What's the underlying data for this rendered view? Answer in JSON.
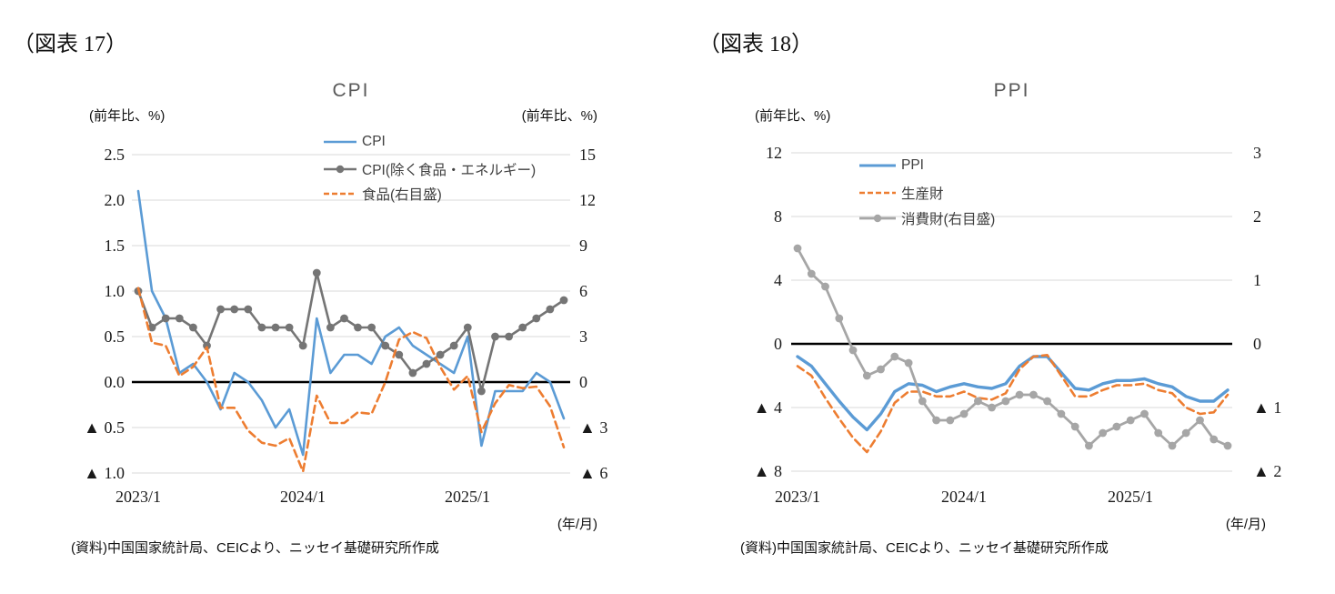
{
  "chart_data": [
    {
      "type": "line",
      "fig_label": "（図表 17）",
      "title": "CPI",
      "left_axis_title": "(前年比、%)",
      "right_axis_title": "(前年比、%)",
      "x_axis_title": "(年/月)",
      "source": "(資料)中国国家統計局、CEICより、ニッセイ基礎研究所作成",
      "months": [
        "2023/1",
        "2023/2",
        "2023/3",
        "2023/4",
        "2023/5",
        "2023/6",
        "2023/7",
        "2023/8",
        "2023/9",
        "2023/10",
        "2023/11",
        "2023/12",
        "2024/1",
        "2024/2",
        "2024/3",
        "2024/4",
        "2024/5",
        "2024/6",
        "2024/7",
        "2024/8",
        "2024/9",
        "2024/10",
        "2024/11",
        "2024/12",
        "2025/1",
        "2025/2",
        "2025/3",
        "2025/4",
        "2025/5",
        "2025/6",
        "2025/7",
        "2025/8"
      ],
      "x_tick_labels": [
        {
          "label": "2023/1",
          "index": 0
        },
        {
          "label": "2024/1",
          "index": 12
        },
        {
          "label": "2025/1",
          "index": 24
        }
      ],
      "left_axis": {
        "min": -1.0,
        "max": 2.5,
        "ticks": [
          2.5,
          2.0,
          1.5,
          1.0,
          0.5,
          0.0,
          -0.5,
          -1.0
        ],
        "tick_labels": [
          "2.5",
          "2.0",
          "1.5",
          "1.0",
          "0.5",
          "0.0",
          "▲ 0.5",
          "▲ 1.0"
        ]
      },
      "right_axis": {
        "min": -6,
        "max": 15,
        "ticks": [
          15,
          12,
          9,
          6,
          3,
          0,
          -3,
          -6
        ],
        "tick_labels": [
          "15",
          "12",
          "9",
          "6",
          "3",
          "0",
          "▲ 3",
          "▲ 6"
        ]
      },
      "grid_color": "#D9D9D9",
      "zero_line_color": "#000000",
      "series": [
        {
          "name": "CPI",
          "axis": "left",
          "color": "#5B9BD5",
          "style": "solid",
          "marker": false,
          "width": 2.6,
          "values": [
            2.1,
            1.0,
            0.7,
            0.1,
            0.2,
            0.0,
            -0.3,
            0.1,
            0.0,
            -0.2,
            -0.5,
            -0.3,
            -0.8,
            0.7,
            0.1,
            0.3,
            0.3,
            0.2,
            0.5,
            0.6,
            0.4,
            0.3,
            0.2,
            0.1,
            0.5,
            -0.7,
            -0.1,
            -0.1,
            -0.1,
            0.1,
            0.0,
            -0.4
          ]
        },
        {
          "name": "CPI(除く食品・エネルギー)",
          "axis": "left",
          "color": "#757575",
          "style": "solid",
          "marker": true,
          "width": 2.6,
          "values": [
            1.0,
            0.6,
            0.7,
            0.7,
            0.6,
            0.4,
            0.8,
            0.8,
            0.8,
            0.6,
            0.6,
            0.6,
            0.4,
            1.2,
            0.6,
            0.7,
            0.6,
            0.6,
            0.4,
            0.3,
            0.1,
            0.2,
            0.3,
            0.4,
            0.6,
            -0.1,
            0.5,
            0.5,
            0.6,
            0.7,
            0.8,
            0.9
          ]
        },
        {
          "name": "食品(右目盛)",
          "axis": "right",
          "color": "#ED7D31",
          "style": "dashed",
          "marker": false,
          "width": 2.6,
          "values": [
            6.2,
            2.6,
            2.4,
            0.4,
            1.0,
            2.3,
            -1.7,
            -1.7,
            -3.2,
            -4.0,
            -4.2,
            -3.7,
            -5.9,
            -0.9,
            -2.7,
            -2.7,
            -2.0,
            -2.1,
            0.0,
            2.8,
            3.3,
            2.9,
            1.0,
            -0.5,
            0.4,
            -3.3,
            -1.4,
            -0.2,
            -0.4,
            -0.3,
            -1.6,
            -4.3
          ]
        }
      ]
    },
    {
      "type": "line",
      "fig_label": "（図表 18）",
      "title": "PPI",
      "left_axis_title": "(前年比、%)",
      "right_axis_title": "",
      "x_axis_title": "(年/月)",
      "source": "(資料)中国国家統計局、CEICより、ニッセイ基礎研究所作成",
      "months": [
        "2023/1",
        "2023/2",
        "2023/3",
        "2023/4",
        "2023/5",
        "2023/6",
        "2023/7",
        "2023/8",
        "2023/9",
        "2023/10",
        "2023/11",
        "2023/12",
        "2024/1",
        "2024/2",
        "2024/3",
        "2024/4",
        "2024/5",
        "2024/6",
        "2024/7",
        "2024/8",
        "2024/9",
        "2024/10",
        "2024/11",
        "2024/12",
        "2025/1",
        "2025/2",
        "2025/3",
        "2025/4",
        "2025/5",
        "2025/6",
        "2025/7",
        "2025/8"
      ],
      "x_tick_labels": [
        {
          "label": "2023/1",
          "index": 0
        },
        {
          "label": "2024/1",
          "index": 12
        },
        {
          "label": "2025/1",
          "index": 24
        }
      ],
      "left_axis": {
        "min": -8,
        "max": 12,
        "ticks": [
          12,
          8,
          4,
          0,
          -4,
          -8
        ],
        "tick_labels": [
          "12",
          "8",
          "4",
          "0",
          "▲ 4",
          "▲ 8"
        ]
      },
      "right_axis": {
        "min": -2,
        "max": 3,
        "ticks": [
          3,
          2,
          1,
          0,
          -1,
          -2
        ],
        "tick_labels": [
          "3",
          "2",
          "1",
          "0",
          "▲ 1",
          "▲ 2"
        ]
      },
      "grid_color": "#D9D9D9",
      "zero_line_color": "#000000",
      "series": [
        {
          "name": "PPI",
          "axis": "left",
          "color": "#5B9BD5",
          "style": "solid",
          "marker": false,
          "width": 3.4,
          "values": [
            -0.8,
            -1.4,
            -2.5,
            -3.6,
            -4.6,
            -5.4,
            -4.4,
            -3.0,
            -2.5,
            -2.6,
            -3.0,
            -2.7,
            -2.5,
            -2.7,
            -2.8,
            -2.5,
            -1.4,
            -0.8,
            -0.8,
            -1.8,
            -2.8,
            -2.9,
            -2.5,
            -2.3,
            -2.3,
            -2.2,
            -2.5,
            -2.7,
            -3.3,
            -3.6,
            -3.6,
            -2.9
          ]
        },
        {
          "name": "生産財",
          "axis": "left",
          "color": "#ED7D31",
          "style": "dashed",
          "marker": false,
          "width": 2.6,
          "values": [
            -1.4,
            -2.0,
            -3.4,
            -4.7,
            -5.9,
            -6.8,
            -5.5,
            -3.7,
            -3.0,
            -3.0,
            -3.3,
            -3.3,
            -3.0,
            -3.4,
            -3.5,
            -3.1,
            -1.6,
            -0.8,
            -0.7,
            -2.0,
            -3.3,
            -3.3,
            -2.9,
            -2.6,
            -2.6,
            -2.5,
            -2.9,
            -3.1,
            -4.0,
            -4.4,
            -4.3,
            -3.2
          ]
        },
        {
          "name": "消費財(右目盛)",
          "axis": "right",
          "color": "#A6A6A6",
          "style": "solid",
          "marker": true,
          "width": 2.8,
          "values": [
            1.5,
            1.1,
            0.9,
            0.4,
            -0.1,
            -0.5,
            -0.4,
            -0.2,
            -0.3,
            -0.9,
            -1.2,
            -1.2,
            -1.1,
            -0.9,
            -1.0,
            -0.9,
            -0.8,
            -0.8,
            -0.9,
            -1.1,
            -1.3,
            -1.6,
            -1.4,
            -1.3,
            -1.2,
            -1.1,
            -1.4,
            -1.6,
            -1.4,
            -1.2,
            -1.5,
            -1.6
          ]
        }
      ]
    }
  ]
}
